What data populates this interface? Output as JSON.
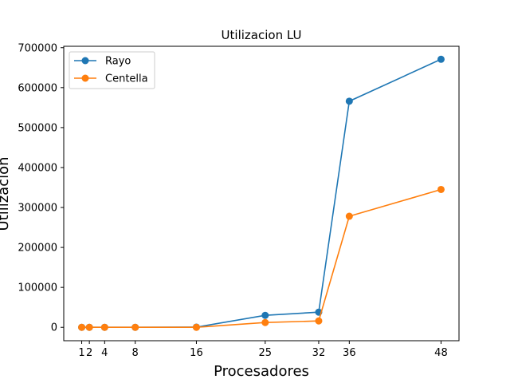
{
  "chart_data": {
    "type": "line",
    "title": "Utilizacion LU",
    "xlabel": "Procesadores",
    "ylabel": "Utilizacion",
    "x": [
      1,
      2,
      4,
      8,
      16,
      25,
      32,
      36,
      48
    ],
    "x_ticks": [
      "1",
      "2",
      "4",
      "8",
      "16",
      "25",
      "32",
      "36",
      "48"
    ],
    "xlim": [
      -1.35,
      50.35
    ],
    "ylim": [
      -33500,
      703500
    ],
    "y_ticks": [
      "0",
      "100000",
      "200000",
      "300000",
      "400000",
      "500000",
      "600000",
      "700000"
    ],
    "grid": false,
    "legend_position": "top-left",
    "series": [
      {
        "name": "Rayo",
        "color": "#1f77b4",
        "values": [
          0,
          0,
          0,
          0,
          500,
          30000,
          38000,
          566000,
          671000
        ]
      },
      {
        "name": "Centella",
        "color": "#ff7f0e",
        "values": [
          0,
          0,
          0,
          0,
          0,
          12000,
          16000,
          278000,
          345000
        ]
      }
    ]
  }
}
